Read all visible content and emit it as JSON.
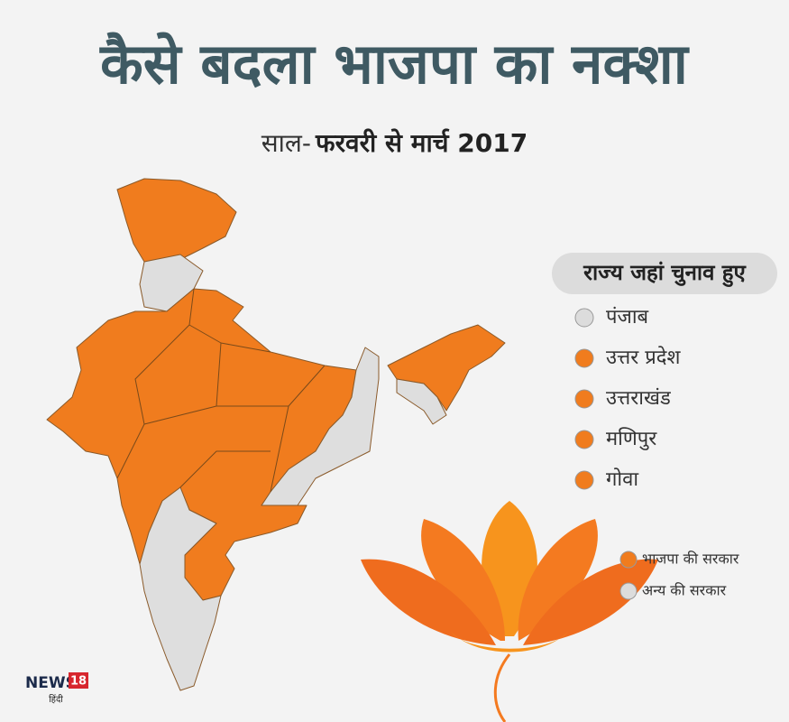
{
  "header": {
    "title": "कैसे बदला भाजपा का नक्शा",
    "subtitle_prefix": "साल-",
    "subtitle": "फरवरी से मार्च 2017"
  },
  "legend_states": {
    "title": "राज्य जहां चुनाव हुए",
    "items": [
      {
        "label": "पंजाब",
        "color": "#dcdcdc"
      },
      {
        "label": "उत्तर प्रदेश",
        "color": "#f07c1e"
      },
      {
        "label": "उत्तराखंड",
        "color": "#f07c1e"
      },
      {
        "label": "मणिपुर",
        "color": "#f07c1e"
      },
      {
        "label": "गोवा",
        "color": "#f07c1e"
      }
    ]
  },
  "legend_key": {
    "items": [
      {
        "label": "भाजपा की सरकार",
        "color": "#f07c1e"
      },
      {
        "label": "अन्य की सरकार",
        "color": "#dcdcdc"
      }
    ]
  },
  "logo": {
    "brand": "NEWS",
    "number": "18",
    "language": "हिंदी"
  }
}
